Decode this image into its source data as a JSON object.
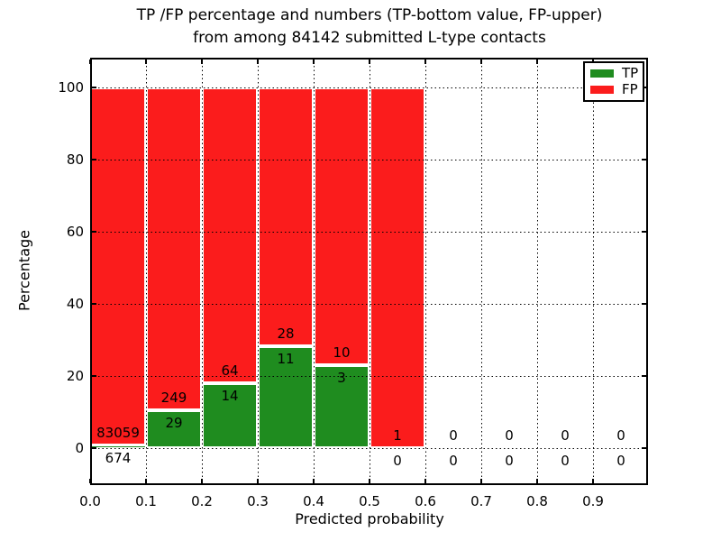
{
  "figure": {
    "title_line1": "TP /FP percentage and numbers (TP-bottom value, FP-upper)",
    "title_line2": "from among 84142 submitted L-type contacts"
  },
  "chart_data": {
    "type": "bar",
    "stacked": true,
    "title": "TP /FP percentage and numbers (TP-bottom value, FP-upper)\nfrom among 84142 submitted L-type contacts",
    "xlabel": "Predicted probability",
    "ylabel": "Percentage",
    "xlim": [
      0.0,
      1.0
    ],
    "ylim": [
      -10,
      110
    ],
    "x_ticks": [
      "0.0",
      "0.1",
      "0.2",
      "0.3",
      "0.4",
      "0.5",
      "0.6",
      "0.7",
      "0.8",
      "0.9"
    ],
    "y_ticks": [
      "0",
      "20",
      "40",
      "60",
      "80",
      "100"
    ],
    "grid": true,
    "grid_style": "dotted",
    "colors": {
      "tp": "#1f8c1f",
      "fp": "#fb1c1c",
      "bar_edge": "#ffffff",
      "text": "#000000"
    },
    "legend": {
      "position": "upper right",
      "entries": [
        {
          "label": "TP",
          "color": "#1f8c1f"
        },
        {
          "label": "FP",
          "color": "#fb1c1c"
        }
      ]
    },
    "bins": [
      {
        "x0": 0.0,
        "x1": 0.1,
        "tp_count": "674",
        "fp_count": "83059",
        "tp_pct": 0.8,
        "fp_pct": 99.2,
        "bar": true
      },
      {
        "x0": 0.1,
        "x1": 0.2,
        "tp_count": "29",
        "fp_count": "249",
        "tp_pct": 10.4,
        "fp_pct": 89.6,
        "bar": true
      },
      {
        "x0": 0.2,
        "x1": 0.3,
        "tp_count": "14",
        "fp_count": "64",
        "tp_pct": 17.9,
        "fp_pct": 82.1,
        "bar": true
      },
      {
        "x0": 0.3,
        "x1": 0.4,
        "tp_count": "11",
        "fp_count": "28",
        "tp_pct": 28.2,
        "fp_pct": 71.8,
        "bar": true
      },
      {
        "x0": 0.4,
        "x1": 0.5,
        "tp_count": "3",
        "fp_count": "10",
        "tp_pct": 23.1,
        "fp_pct": 76.9,
        "bar": true
      },
      {
        "x0": 0.5,
        "x1": 0.6,
        "tp_count": "0",
        "fp_count": "1",
        "tp_pct": 0.0,
        "fp_pct": 100.0,
        "bar": true
      },
      {
        "x0": 0.6,
        "x1": 0.7,
        "tp_count": "0",
        "fp_count": "0",
        "tp_pct": 0.0,
        "fp_pct": 0.0,
        "bar": false
      },
      {
        "x0": 0.7,
        "x1": 0.8,
        "tp_count": "0",
        "fp_count": "0",
        "tp_pct": 0.0,
        "fp_pct": 0.0,
        "bar": false
      },
      {
        "x0": 0.8,
        "x1": 0.9,
        "tp_count": "0",
        "fp_count": "0",
        "tp_pct": 0.0,
        "fp_pct": 0.0,
        "bar": false
      },
      {
        "x0": 0.9,
        "x1": 1.0,
        "tp_count": "0",
        "fp_count": "0",
        "tp_pct": 0.0,
        "fp_pct": 0.0,
        "bar": false
      }
    ]
  }
}
